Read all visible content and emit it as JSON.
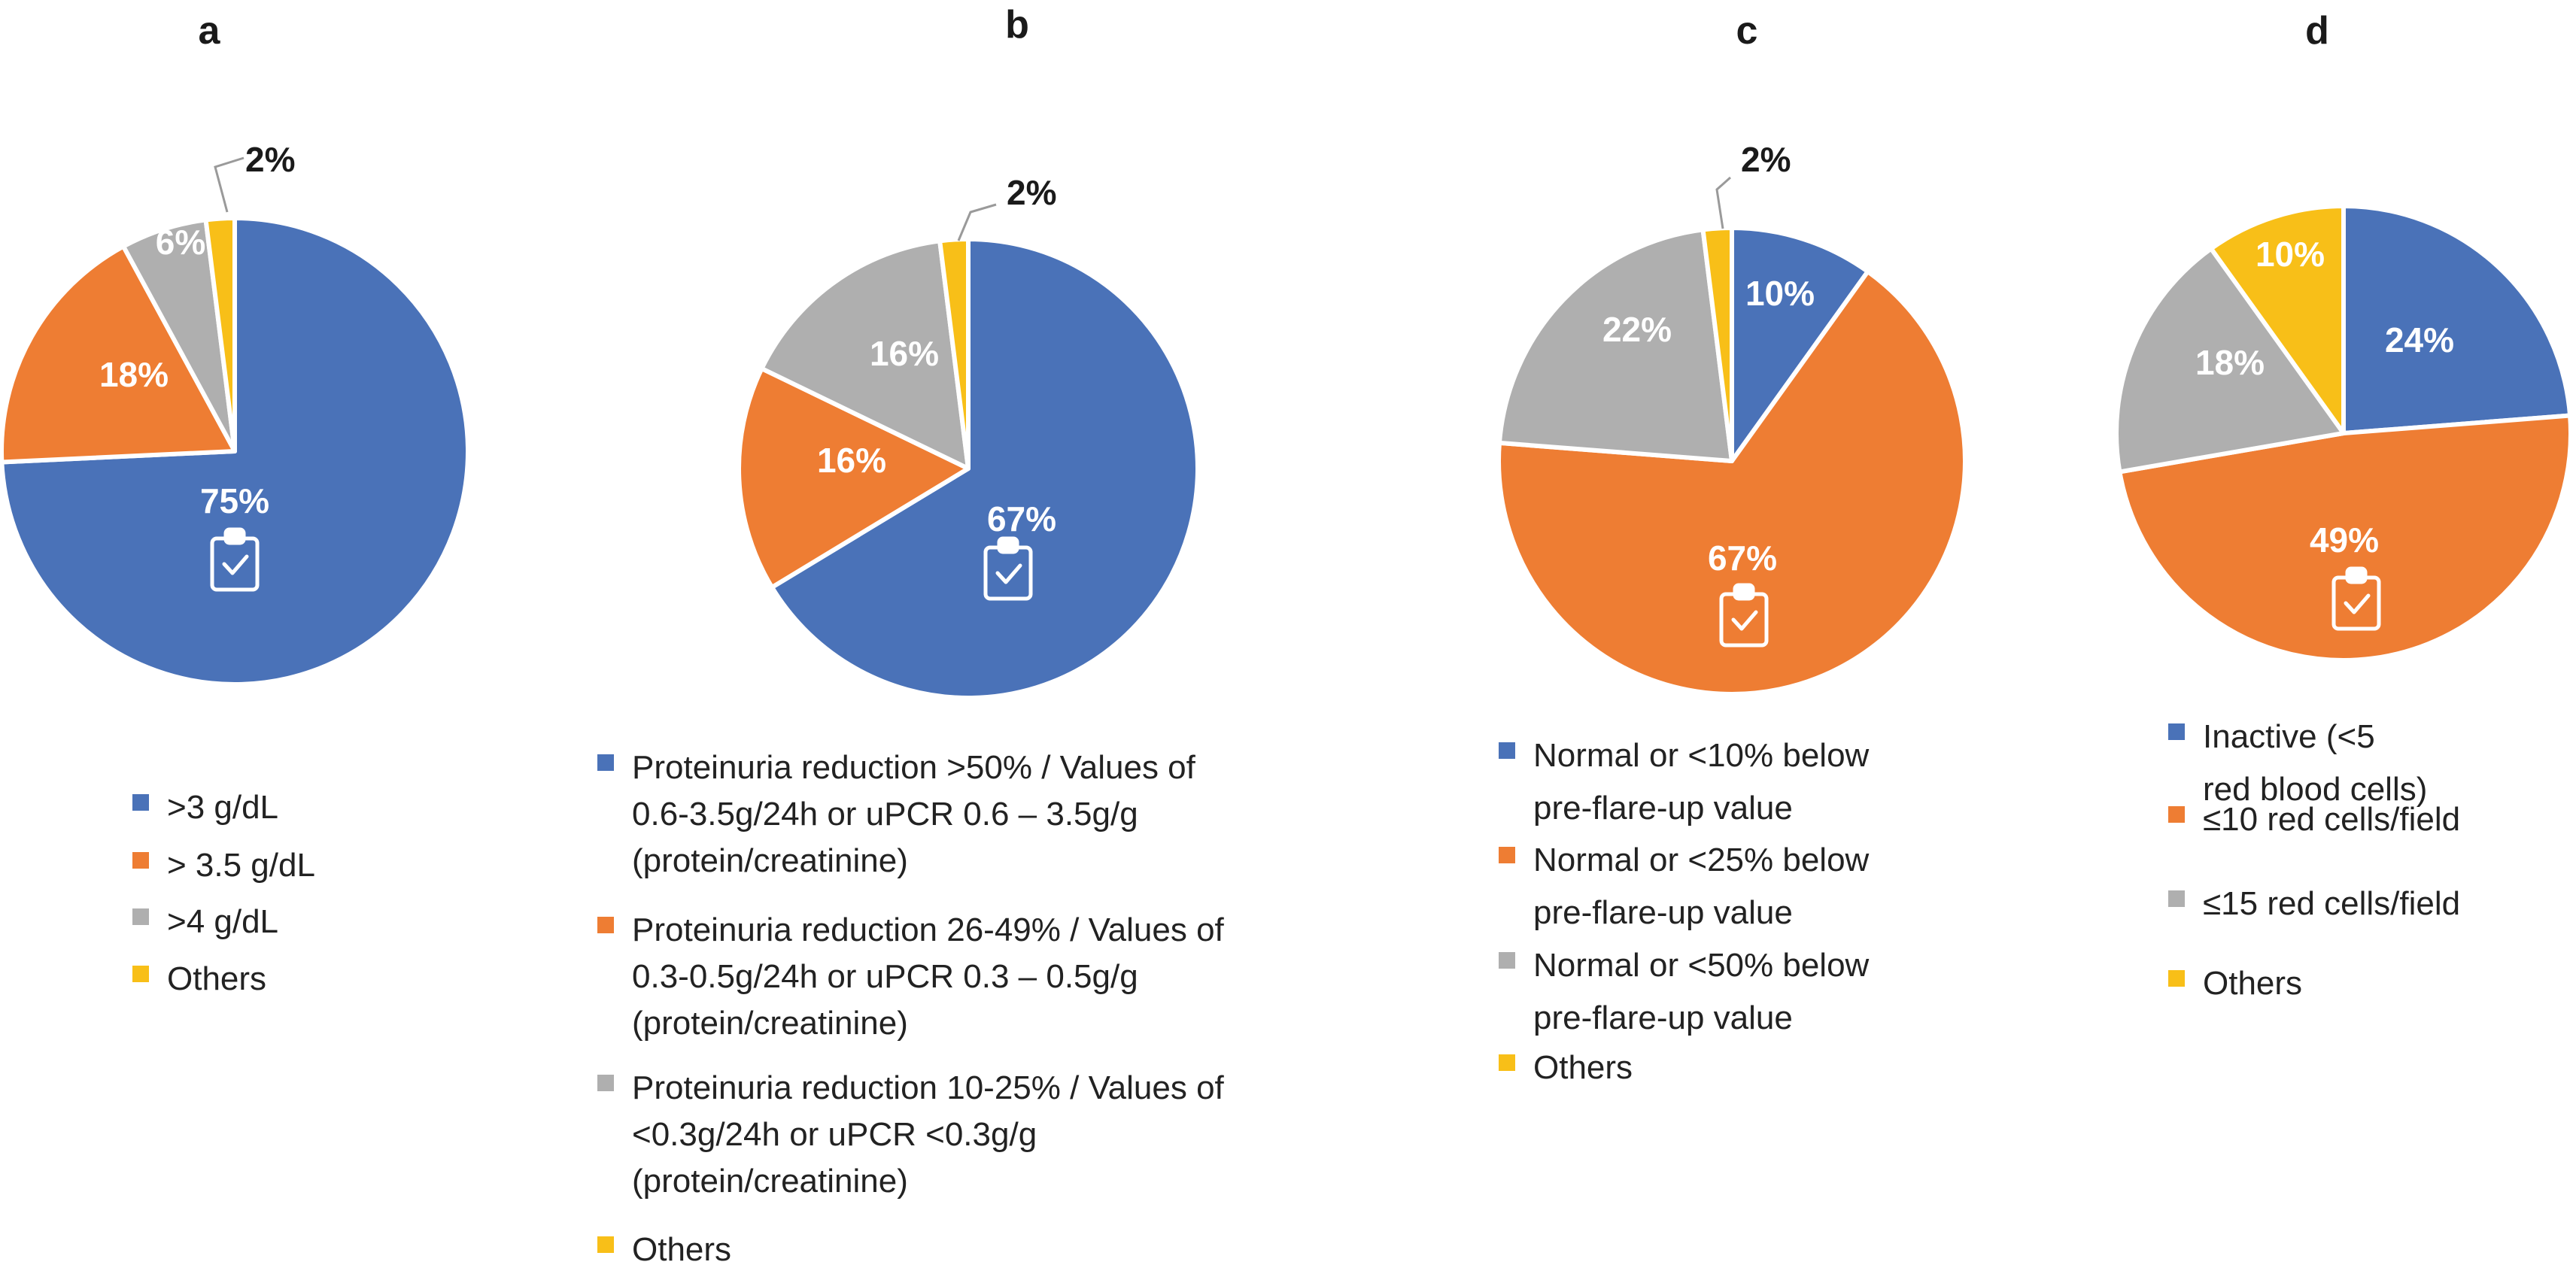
{
  "colors": {
    "blue": "#4A72B8",
    "orange": "#EE7D33",
    "gray": "#AFAFAF",
    "yellow": "#F8BF18",
    "icon": "clipboard-check-icon"
  },
  "chart_data": [
    {
      "type": "pie",
      "panel": "a",
      "slices": [
        {
          "label": ">3 g/dL",
          "value": 75,
          "display": "75%",
          "color": "#4A72B8"
        },
        {
          "label": "> 3.5 g/dL",
          "value": 18,
          "display": "18%",
          "color": "#EE7D33"
        },
        {
          "label": ">4 g/dL",
          "value": 6,
          "display": "6%",
          "color": "#AFAFAF"
        },
        {
          "label": "Others",
          "value": 2,
          "display": "2%",
          "color": "#F8BF18"
        }
      ],
      "legend": [
        [
          ">3 g/dL"
        ],
        [
          "> 3.5 g/dL"
        ],
        [
          ">4 g/dL"
        ],
        [
          "Others"
        ]
      ],
      "legend_position": "bottom"
    },
    {
      "type": "pie",
      "panel": "b",
      "slices": [
        {
          "label": "Proteinuria reduction >50% / Values of 0.6-3.5g/24h or uPCR 0.6 – 3.5g/g (protein/creatinine)",
          "value": 67,
          "display": "67%",
          "color": "#4A72B8"
        },
        {
          "label": "Proteinuria reduction 26-49% / Values of 0.3-0.5g/24h or uPCR 0.3 – 0.5g/g (protein/creatinine)",
          "value": 16,
          "display": "16%",
          "color": "#EE7D33"
        },
        {
          "label": "Proteinuria reduction 10-25% / Values of <0.3g/24h or uPCR <0.3g/g (protein/creatinine)",
          "value": 16,
          "display": "16%",
          "color": "#AFAFAF"
        },
        {
          "label": "Others",
          "value": 2,
          "display": "2%",
          "color": "#F8BF18"
        }
      ],
      "legend": [
        [
          "Proteinuria reduction >50% / Values of",
          "0.6-3.5g/24h or uPCR 0.6 – 3.5g/g",
          "(protein/creatinine)"
        ],
        [
          "Proteinuria reduction 26-49% / Values of",
          "0.3-0.5g/24h or uPCR 0.3 – 0.5g/g",
          "(protein/creatinine)"
        ],
        [
          "Proteinuria reduction 10-25% / Values of",
          "<0.3g/24h or uPCR <0.3g/g",
          "(protein/creatinine)"
        ],
        [
          "Others"
        ]
      ],
      "legend_position": "bottom"
    },
    {
      "type": "pie",
      "panel": "c",
      "slices": [
        {
          "label": "Normal or <10% below pre-flare-up value",
          "value": 10,
          "display": "10%",
          "color": "#4A72B8"
        },
        {
          "label": "Normal or <25% below pre-flare-up value",
          "value": 67,
          "display": "67%",
          "color": "#EE7D33"
        },
        {
          "label": "Normal or <50% below pre-flare-up value",
          "value": 22,
          "display": "22%",
          "color": "#AFAFAF"
        },
        {
          "label": "Others",
          "value": 2,
          "display": "2%",
          "color": "#F8BF18"
        }
      ],
      "legend": [
        [
          "Normal or <10% below",
          "pre-flare-up value"
        ],
        [
          "Normal or <25% below",
          "pre-flare-up value"
        ],
        [
          "Normal or <50% below",
          "pre-flare-up value"
        ],
        [
          "Others"
        ]
      ],
      "legend_position": "bottom"
    },
    {
      "type": "pie",
      "panel": "d",
      "slices": [
        {
          "label": "Inactive (<5 red blood cells)",
          "value": 24,
          "display": "24%",
          "color": "#4A72B8"
        },
        {
          "label": "≤10 red cells/field",
          "value": 49,
          "display": "49%",
          "color": "#EE7D33"
        },
        {
          "label": "≤15 red cells/field",
          "value": 18,
          "display": "18%",
          "color": "#AFAFAF"
        },
        {
          "label": "Others",
          "value": 10,
          "display": "10%",
          "color": "#F8BF18"
        }
      ],
      "legend": [
        [
          "Inactive (<5",
          "red blood cells)"
        ],
        [
          "≤10 red cells/field"
        ],
        [
          "≤15 red cells/field"
        ],
        [
          "Others"
        ]
      ],
      "legend_position": "bottom"
    }
  ]
}
